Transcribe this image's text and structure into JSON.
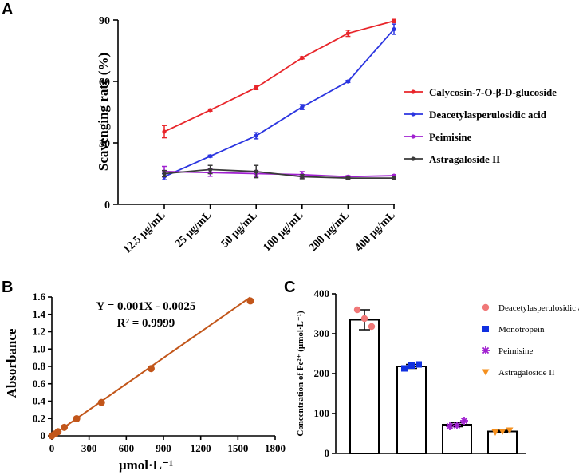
{
  "panels": {
    "a": "A",
    "b": "B",
    "c": "C"
  },
  "chart_data": [
    {
      "id": "A",
      "type": "line",
      "title": "",
      "xlabel": "",
      "ylabel": "Scavenging rate (%)",
      "ylim": [
        0,
        90
      ],
      "yticks": [
        "0",
        "30",
        "60",
        "90"
      ],
      "categories": [
        "12.5 μg/mL",
        "25 μg/mL",
        "50 μg/mL",
        "100 μg/mL",
        "200 μg/mL",
        "400 μg/mL"
      ],
      "legend_position": "right",
      "series": [
        {
          "name": "Calycosin-7-O-β-D-glucoside",
          "color": "#e8252a",
          "values": [
            35.5,
            46,
            57,
            71.5,
            83.5,
            89.5
          ],
          "errors": [
            3,
            0.5,
            1,
            0.5,
            1.5,
            0.8
          ]
        },
        {
          "name": "Deacetylasperulosidic acid",
          "color": "#2b35e0",
          "values": [
            13.5,
            23.5,
            33.5,
            47.5,
            60,
            85.5
          ],
          "errors": [
            1.5,
            0.5,
            1.5,
            1.2,
            0.5,
            2.5
          ]
        },
        {
          "name": "Peimisine",
          "color": "#a020d0",
          "values": [
            16,
            15.5,
            15,
            14.5,
            13.5,
            14
          ],
          "errors": [
            2.5,
            1.8,
            1.5,
            1.5,
            0.5,
            0.5
          ]
        },
        {
          "name": "Astragaloside II",
          "color": "#3a3a3a",
          "values": [
            15,
            17,
            16,
            13.5,
            12.8,
            12.8
          ],
          "errors": [
            1.5,
            2,
            3,
            1,
            0.5,
            0.5
          ]
        }
      ]
    },
    {
      "id": "B",
      "type": "scatter",
      "title": "",
      "xlabel": "μmol·L⁻¹",
      "ylabel": "Absorbance",
      "xlim": [
        0,
        1800
      ],
      "ylim": [
        0,
        1.6
      ],
      "xticks": [
        "0",
        "300",
        "600",
        "900",
        "1200",
        "1500",
        "1800"
      ],
      "yticks": [
        "0",
        "0.2",
        "0.4",
        "0.6",
        "0.8",
        "1.0",
        "1.2",
        "1.4",
        "1.6"
      ],
      "color": "#c2561a",
      "x": [
        0,
        25,
        50,
        100,
        200,
        400,
        800,
        1600
      ],
      "y": [
        0,
        0.022,
        0.048,
        0.098,
        0.198,
        0.385,
        0.775,
        1.555
      ],
      "fit": {
        "slope": 0.001,
        "intercept": -0.0025
      },
      "equation": "Y = 0.001X - 0.0025",
      "r2": "R² = 0.9999"
    },
    {
      "id": "C",
      "type": "bar",
      "title": "",
      "xlabel": "",
      "ylabel": "Concentration of Fe²⁺ (μmol·L⁻¹)",
      "ylim": [
        0,
        400
      ],
      "yticks": [
        "0",
        "100",
        "200",
        "300",
        "400"
      ],
      "categories": [
        "Deacetylasperulosidic acid",
        "Monotropein",
        "Peimisine",
        "Astragaloside II"
      ],
      "values": [
        335,
        218,
        72,
        55
      ],
      "errors": [
        25,
        5,
        5,
        3
      ],
      "points": [
        [
          360,
          338,
          318
        ],
        [
          213,
          220,
          223
        ],
        [
          68,
          70,
          82
        ],
        [
          53,
          55,
          58
        ]
      ],
      "markers": [
        {
          "shape": "circle",
          "color": "#f07878"
        },
        {
          "shape": "square",
          "color": "#1030e0"
        },
        {
          "shape": "asterisk",
          "color": "#a020d0"
        },
        {
          "shape": "triangle-down",
          "color": "#f5901e"
        }
      ],
      "legend_position": "top-right"
    }
  ]
}
